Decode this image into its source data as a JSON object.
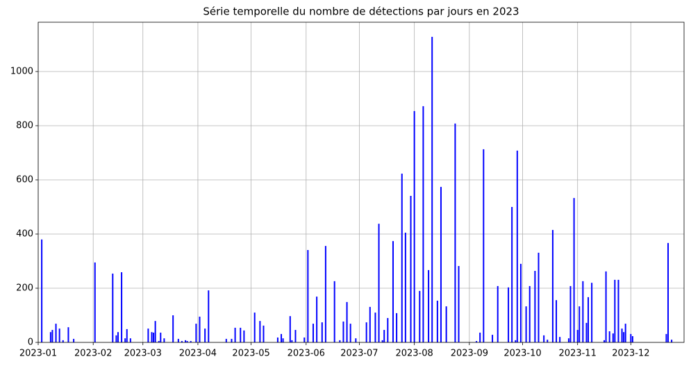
{
  "chart_data": {
    "type": "bar",
    "title": "Série temporelle du nombre de détections par jours en 2023",
    "color": "#0000ff",
    "grid": true,
    "x": [
      "2023-01-03",
      "2023-01-08",
      "2023-01-09",
      "2023-01-11",
      "2023-01-13",
      "2023-01-15",
      "2023-01-18",
      "2023-01-21",
      "2023-02-02",
      "2023-02-12",
      "2023-02-14",
      "2023-02-15",
      "2023-02-17",
      "2023-02-19",
      "2023-02-20",
      "2023-02-22",
      "2023-03-04",
      "2023-03-06",
      "2023-03-07",
      "2023-03-08",
      "2023-03-10",
      "2023-03-11",
      "2023-03-13",
      "2023-03-18",
      "2023-03-21",
      "2023-03-23",
      "2023-03-25",
      "2023-03-26",
      "2023-03-28",
      "2023-03-31",
      "2023-04-02",
      "2023-04-05",
      "2023-04-07",
      "2023-04-17",
      "2023-04-20",
      "2023-04-22",
      "2023-04-25",
      "2023-04-27",
      "2023-05-03",
      "2023-05-06",
      "2023-05-08",
      "2023-05-16",
      "2023-05-18",
      "2023-05-19",
      "2023-05-23",
      "2023-05-24",
      "2023-05-26",
      "2023-05-31",
      "2023-06-02",
      "2023-06-05",
      "2023-06-07",
      "2023-06-10",
      "2023-06-12",
      "2023-06-17",
      "2023-06-20",
      "2023-06-22",
      "2023-06-24",
      "2023-06-26",
      "2023-06-29",
      "2023-07-05",
      "2023-07-07",
      "2023-07-10",
      "2023-07-12",
      "2023-07-14",
      "2023-07-15",
      "2023-07-17",
      "2023-07-20",
      "2023-07-22",
      "2023-07-25",
      "2023-07-27",
      "2023-07-30",
      "2023-08-01",
      "2023-08-04",
      "2023-08-06",
      "2023-08-09",
      "2023-08-11",
      "2023-08-14",
      "2023-08-16",
      "2023-08-19",
      "2023-08-24",
      "2023-08-26",
      "2023-09-05",
      "2023-09-07",
      "2023-09-09",
      "2023-09-14",
      "2023-09-17",
      "2023-09-23",
      "2023-09-25",
      "2023-09-27",
      "2023-09-28",
      "2023-09-30",
      "2023-10-03",
      "2023-10-05",
      "2023-10-08",
      "2023-10-10",
      "2023-10-13",
      "2023-10-15",
      "2023-10-18",
      "2023-10-20",
      "2023-10-22",
      "2023-10-27",
      "2023-10-28",
      "2023-10-30",
      "2023-11-01",
      "2023-11-02",
      "2023-11-04",
      "2023-11-06",
      "2023-11-07",
      "2023-11-09",
      "2023-11-16",
      "2023-11-17",
      "2023-11-19",
      "2023-11-21",
      "2023-11-22",
      "2023-11-24",
      "2023-11-26",
      "2023-11-27",
      "2023-11-28",
      "2023-12-01",
      "2023-12-02",
      "2023-12-21",
      "2023-12-22",
      "2023-12-24"
    ],
    "values": [
      380,
      38,
      46,
      69,
      51,
      8,
      56,
      13,
      295,
      254,
      26,
      38,
      259,
      15,
      49,
      15,
      51,
      38,
      36,
      79,
      5,
      36,
      15,
      100,
      13,
      5,
      8,
      5,
      5,
      69,
      95,
      51,
      192,
      13,
      13,
      54,
      54,
      44,
      110,
      79,
      62,
      18,
      31,
      15,
      97,
      8,
      46,
      18,
      341,
      69,
      169,
      74,
      356,
      226,
      8,
      77,
      149,
      69,
      15,
      74,
      131,
      110,
      438,
      8,
      46,
      90,
      374,
      108,
      623,
      405,
      541,
      854,
      190,
      872,
      267,
      1128,
      154,
      574,
      133,
      808,
      282,
      5,
      36,
      713,
      28,
      208,
      203,
      500,
      8,
      708,
      290,
      133,
      208,
      264,
      331,
      26,
      10,
      415,
      156,
      20,
      15,
      208,
      533,
      46,
      133,
      226,
      72,
      167,
      220,
      8,
      262,
      41,
      33,
      231,
      231,
      51,
      38,
      69,
      31,
      23,
      31,
      367,
      10
    ],
    "xlim": [
      "2023-01-01",
      "2023-12-31"
    ],
    "xticks": [
      {
        "value": "2023-01-01",
        "label": "2023-01"
      },
      {
        "value": "2023-02-01",
        "label": "2023-02"
      },
      {
        "value": "2023-03-01",
        "label": "2023-03"
      },
      {
        "value": "2023-04-01",
        "label": "2023-04"
      },
      {
        "value": "2023-05-01",
        "label": "2023-05"
      },
      {
        "value": "2023-06-01",
        "label": "2023-06"
      },
      {
        "value": "2023-07-01",
        "label": "2023-07"
      },
      {
        "value": "2023-08-01",
        "label": "2023-08"
      },
      {
        "value": "2023-09-01",
        "label": "2023-09"
      },
      {
        "value": "2023-10-01",
        "label": "2023-10"
      },
      {
        "value": "2023-11-01",
        "label": "2023-11"
      },
      {
        "value": "2023-12-01",
        "label": "2023-12"
      }
    ],
    "ylim": [
      0,
      1182
    ],
    "yticks": [
      0,
      200,
      400,
      600,
      800,
      1000
    ]
  }
}
